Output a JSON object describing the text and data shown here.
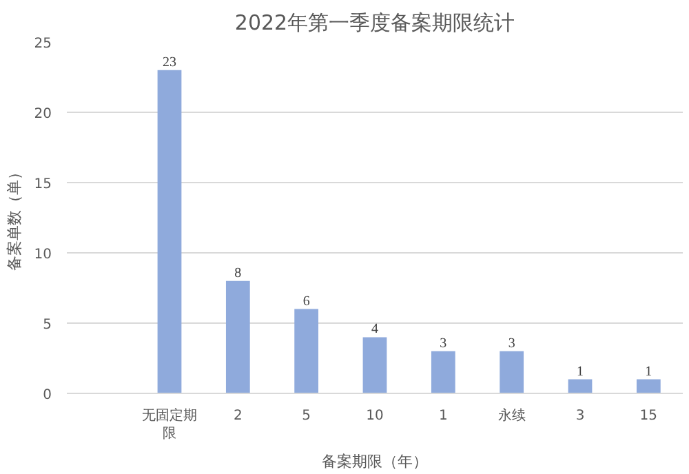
{
  "chart_data": {
    "type": "bar",
    "title": "2022年第一季度备案期限统计",
    "xlabel": "备案期限（年）",
    "ylabel": "备案单数（单）",
    "categories": [
      null,
      "无固定期限",
      "2",
      "5",
      "10",
      "1",
      "永续",
      "3",
      "15"
    ],
    "values": [
      null,
      23,
      8,
      6,
      4,
      3,
      3,
      1,
      1
    ],
    "color": "#8faadc",
    "ylim": [
      0,
      25
    ],
    "yticks": [
      0,
      5,
      10,
      15,
      20,
      25
    ],
    "grid": "y",
    "data_labels": true
  }
}
